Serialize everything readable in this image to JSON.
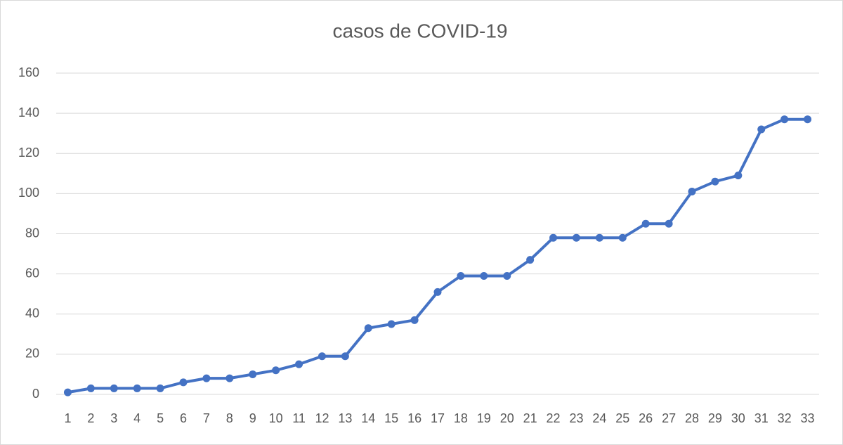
{
  "chart_data": {
    "type": "line",
    "title": "casos de COVID-19",
    "categories": [
      1,
      2,
      3,
      4,
      5,
      6,
      7,
      8,
      9,
      10,
      11,
      12,
      13,
      14,
      15,
      16,
      17,
      18,
      19,
      20,
      21,
      22,
      23,
      24,
      25,
      26,
      27,
      28,
      29,
      30,
      31,
      32,
      33
    ],
    "values": [
      1,
      3,
      3,
      3,
      3,
      6,
      8,
      8,
      10,
      12,
      15,
      19,
      19,
      33,
      35,
      37,
      51,
      59,
      59,
      59,
      67,
      78,
      78,
      78,
      78,
      85,
      85,
      101,
      106,
      109,
      132,
      137,
      137
    ],
    "color": "#4472c4",
    "ylim": [
      0,
      160
    ],
    "yticks": [
      0,
      20,
      40,
      60,
      80,
      100,
      120,
      140,
      160
    ],
    "grid": true
  }
}
